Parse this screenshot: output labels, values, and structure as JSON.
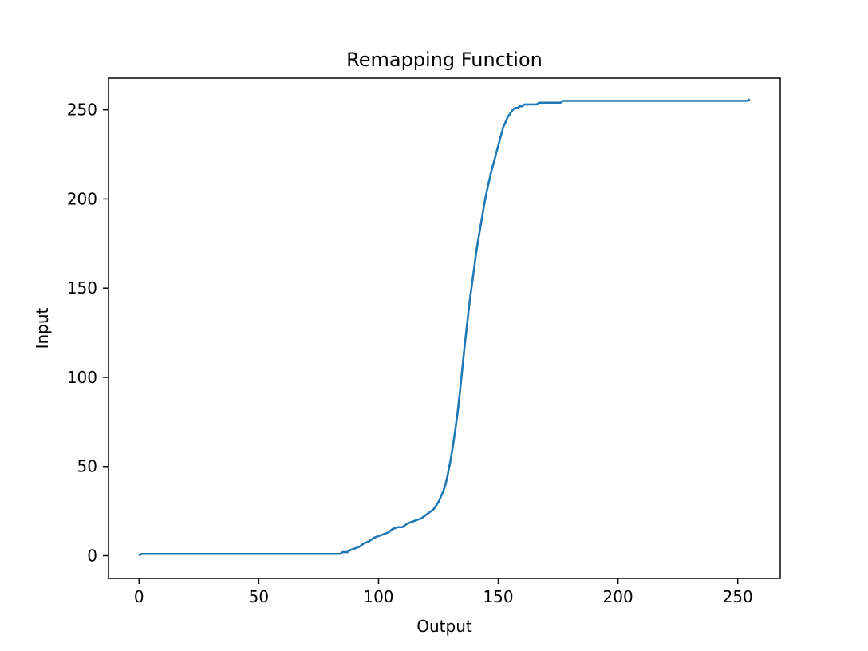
{
  "chart_data": {
    "type": "line",
    "title": "Remapping Function",
    "xlabel": "Output",
    "ylabel": "Input",
    "xlim": [
      -12.75,
      267.75
    ],
    "ylim": [
      -12.75,
      267.75
    ],
    "xticks": [
      0,
      50,
      100,
      150,
      200,
      250
    ],
    "yticks": [
      0,
      50,
      100,
      150,
      200,
      250
    ],
    "grid": false,
    "line_color": "#1f77b4",
    "series": [
      {
        "x": [
          0,
          1,
          2,
          10,
          20,
          40,
          60,
          80,
          84,
          85,
          86,
          87,
          88,
          90,
          92,
          94,
          96,
          98,
          100,
          102,
          104,
          106,
          108,
          110,
          112,
          114,
          116,
          118,
          120,
          122,
          123,
          124,
          125,
          126,
          127,
          128,
          129,
          130,
          131,
          132,
          133,
          134,
          135,
          136,
          137,
          138,
          139,
          140,
          141,
          142,
          143,
          144,
          145,
          146,
          147,
          148,
          149,
          150,
          151,
          152,
          153,
          154,
          155,
          156,
          157,
          158,
          159,
          160,
          161,
          162,
          163,
          164,
          165,
          166,
          167,
          168,
          169,
          170,
          172,
          174,
          176,
          177,
          178,
          180,
          190,
          200,
          210,
          220,
          230,
          240,
          250,
          254,
          255
        ],
        "y": [
          0,
          1,
          1,
          1,
          1,
          1,
          1,
          1,
          1,
          2,
          2,
          2,
          3,
          4,
          5,
          7,
          8,
          10,
          11,
          12,
          13,
          15,
          16,
          16,
          18,
          19,
          20,
          21,
          23,
          25,
          26,
          28,
          30,
          33,
          36,
          40,
          46,
          53,
          61,
          70,
          80,
          92,
          105,
          118,
          130,
          142,
          152,
          162,
          172,
          180,
          188,
          196,
          203,
          209,
          215,
          220,
          225,
          230,
          235,
          240,
          243,
          246,
          248,
          250,
          251,
          251,
          252,
          252,
          253,
          253,
          253,
          253,
          253,
          253,
          254,
          254,
          254,
          254,
          254,
          254,
          254,
          255,
          255,
          255,
          255,
          255,
          255,
          255,
          255,
          255,
          255,
          255,
          256
        ]
      }
    ]
  }
}
